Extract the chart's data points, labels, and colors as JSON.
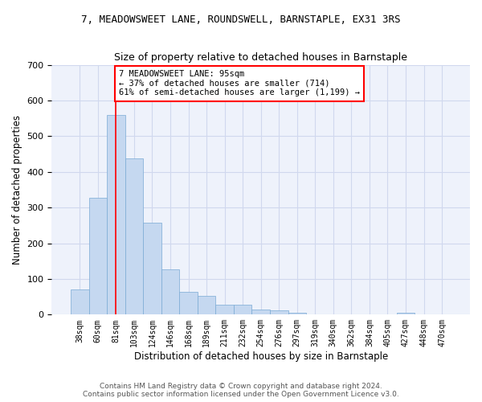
{
  "title": "7, MEADOWSWEET LANE, ROUNDSWELL, BARNSTAPLE, EX31 3RS",
  "subtitle": "Size of property relative to detached houses in Barnstaple",
  "xlabel": "Distribution of detached houses by size in Barnstaple",
  "ylabel": "Number of detached properties",
  "categories": [
    "38sqm",
    "60sqm",
    "81sqm",
    "103sqm",
    "124sqm",
    "146sqm",
    "168sqm",
    "189sqm",
    "211sqm",
    "232sqm",
    "254sqm",
    "276sqm",
    "297sqm",
    "319sqm",
    "340sqm",
    "362sqm",
    "384sqm",
    "405sqm",
    "427sqm",
    "448sqm",
    "470sqm"
  ],
  "values": [
    70,
    328,
    560,
    437,
    257,
    128,
    63,
    52,
    28,
    28,
    15,
    12,
    5,
    0,
    0,
    0,
    0,
    0,
    5,
    0,
    0
  ],
  "bar_color": "#c5d8f0",
  "bar_edge_color": "#7aaad4",
  "annotation_line1": "7 MEADOWSWEET LANE: 95sqm",
  "annotation_line2": "← 37% of detached houses are smaller (714)",
  "annotation_line3": "61% of semi-detached houses are larger (1,199) →",
  "vline_index": 2,
  "background_color": "#eef2fb",
  "grid_color": "#d0d8ee",
  "footer_text": "Contains HM Land Registry data © Crown copyright and database right 2024.\nContains public sector information licensed under the Open Government Licence v3.0.",
  "ylim": [
    0,
    700
  ],
  "yticks": [
    0,
    100,
    200,
    300,
    400,
    500,
    600,
    700
  ]
}
